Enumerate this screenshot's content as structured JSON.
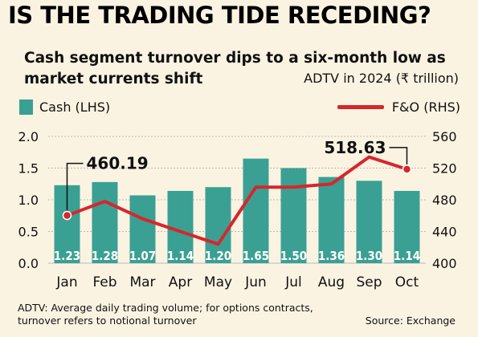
{
  "title": "IS THE TRADING TIDE RECEDING?",
  "subtitle": "Cash segment turnover dips to a six-month low as market currents shift",
  "units_label": "ADTV in 2024 (₹ trillion)",
  "legend": {
    "cash": "Cash (LHS)",
    "fo": "F&O (RHS)"
  },
  "footnote": "ADTV: Average daily trading volume; for options contracts, turnover refers to notional turnover",
  "source": "Source: Exchange",
  "colors": {
    "bar": "#3aa094",
    "line": "#d7262c",
    "grid": "#b9b9b9",
    "background": "#fbf3e2"
  },
  "chart_data": {
    "type": "bar",
    "categories": [
      "Jan",
      "Feb",
      "Mar",
      "Apr",
      "May",
      "Jun",
      "Jul",
      "Aug",
      "Sep",
      "Oct"
    ],
    "series": [
      {
        "name": "Cash (LHS)",
        "type": "bar",
        "axis": "left",
        "values": [
          1.23,
          1.28,
          1.07,
          1.14,
          1.2,
          1.65,
          1.5,
          1.36,
          1.3,
          1.14
        ]
      },
      {
        "name": "F&O (RHS)",
        "type": "line",
        "axis": "right",
        "values": [
          460.19,
          478,
          456,
          440,
          424,
          496,
          496,
          500,
          534,
          518.63
        ]
      }
    ],
    "y_left": {
      "range": [
        0,
        2.0
      ],
      "ticks": [
        "0.0",
        "0.5",
        "1.0",
        "1.5",
        "2.0"
      ]
    },
    "y_right": {
      "range": [
        400,
        560
      ],
      "ticks": [
        "400",
        "440",
        "480",
        "520",
        "560"
      ]
    },
    "annotations": [
      {
        "series": "F&O (RHS)",
        "category": "Jan",
        "text": "460.19"
      },
      {
        "series": "F&O (RHS)",
        "category": "Oct",
        "text": "518.63"
      }
    ],
    "grid": true,
    "legend_placement": "top"
  }
}
